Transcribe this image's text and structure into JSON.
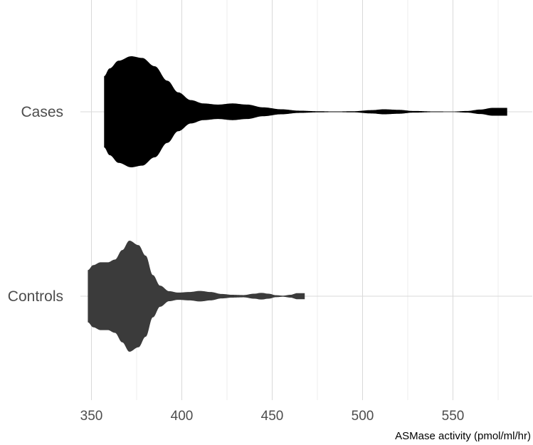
{
  "chart_data": {
    "type": "violin",
    "title": "",
    "xlabel": "ASMase activity (pmol/ml/hr)",
    "ylabel": "",
    "xlim": [
      340,
      580
    ],
    "x_ticks": [
      350,
      400,
      450,
      500,
      550
    ],
    "x_tick_labels": [
      "350",
      "400",
      "450",
      "500",
      "550"
    ],
    "categories": [
      "Cases",
      "Controls"
    ],
    "grid": true,
    "legend": "none",
    "series": [
      {
        "category": "Cases",
        "color": "#000000",
        "min": 357,
        "max": 580,
        "density_profile": [
          [
            357,
            0.64
          ],
          [
            360,
            0.78
          ],
          [
            365,
            0.92
          ],
          [
            372,
            1.0
          ],
          [
            378,
            0.97
          ],
          [
            385,
            0.82
          ],
          [
            392,
            0.56
          ],
          [
            398,
            0.35
          ],
          [
            405,
            0.21
          ],
          [
            412,
            0.15
          ],
          [
            420,
            0.13
          ],
          [
            428,
            0.15
          ],
          [
            436,
            0.13
          ],
          [
            445,
            0.08
          ],
          [
            455,
            0.045
          ],
          [
            465,
            0.02
          ],
          [
            475,
            0.01
          ],
          [
            485,
            0.006
          ],
          [
            495,
            0.01
          ],
          [
            505,
            0.03
          ],
          [
            512,
            0.045
          ],
          [
            520,
            0.035
          ],
          [
            528,
            0.015
          ],
          [
            540,
            0.006
          ],
          [
            550,
            0.005
          ],
          [
            558,
            0.015
          ],
          [
            565,
            0.04
          ],
          [
            572,
            0.07
          ],
          [
            580,
            0.07
          ]
        ]
      },
      {
        "category": "Controls",
        "color": "#3b3b3b",
        "min": 348,
        "max": 468,
        "density_profile": [
          [
            348,
            0.47
          ],
          [
            351,
            0.56
          ],
          [
            355,
            0.61
          ],
          [
            359,
            0.61
          ],
          [
            363,
            0.66
          ],
          [
            367,
            0.83
          ],
          [
            371,
            1.0
          ],
          [
            376,
            0.92
          ],
          [
            380,
            0.73
          ],
          [
            384,
            0.38
          ],
          [
            388,
            0.19
          ],
          [
            393,
            0.09
          ],
          [
            398,
            0.065
          ],
          [
            404,
            0.075
          ],
          [
            410,
            0.095
          ],
          [
            416,
            0.075
          ],
          [
            422,
            0.04
          ],
          [
            428,
            0.025
          ],
          [
            434,
            0.02
          ],
          [
            440,
            0.045
          ],
          [
            444,
            0.06
          ],
          [
            448,
            0.045
          ],
          [
            452,
            0.018
          ],
          [
            456,
            0.01
          ],
          [
            460,
            0.025
          ],
          [
            464,
            0.055
          ],
          [
            468,
            0.055
          ]
        ]
      }
    ]
  }
}
